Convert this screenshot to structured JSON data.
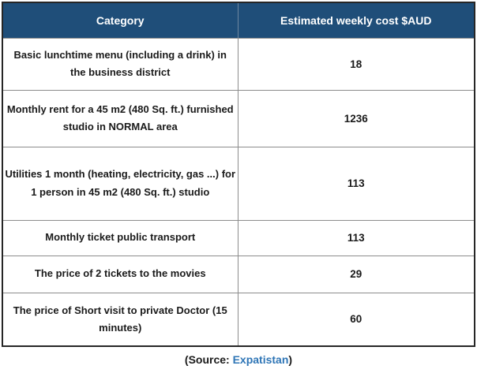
{
  "table": {
    "headers": [
      "Category",
      "Estimated weekly cost $AUD"
    ],
    "rows": [
      {
        "category": "Basic lunchtime menu (including a drink) in the business district",
        "cost": "18"
      },
      {
        "category": "Monthly rent for a 45 m2 (480 Sq. ft.) furnished studio in NORMAL area",
        "cost": "1236"
      },
      {
        "category": "Utilities 1 month (heating, electricity, gas ...) for 1 person in 45 m2 (480 Sq. ft.) studio",
        "cost": "113"
      },
      {
        "category": "Monthly ticket public transport",
        "cost": "113"
      },
      {
        "category": "The price of 2 tickets to the movies",
        "cost": "29"
      },
      {
        "category": "The price of Short visit to private Doctor (15 minutes)",
        "cost": "60"
      }
    ]
  },
  "footer": {
    "prefix": "(Source: ",
    "link": "Expatistan",
    "suffix": ")"
  },
  "colors": {
    "header_bg": "#1F4E79",
    "header_text": "#FFFFFF",
    "body_text": "#1A1A1A",
    "link": "#2E75B6",
    "outer_border": "#262626",
    "inner_border": "#8C8C8C"
  },
  "chart_data": {
    "type": "table",
    "title": "",
    "columns": [
      "Category",
      "Estimated weekly cost $AUD"
    ],
    "categories": [
      "Basic lunchtime menu (including a drink) in the business district",
      "Monthly rent for a 45 m2 (480 Sq. ft.) furnished studio in NORMAL area",
      "Utilities 1 month (heating, electricity, gas ...) for 1 person in 45 m2 (480 Sq. ft.) studio",
      "Monthly ticket public transport",
      "The price of 2 tickets to the movies",
      "The price of Short visit to private Doctor (15 minutes)"
    ],
    "values": [
      18,
      1236,
      113,
      113,
      29,
      60
    ],
    "source": "Expatistan"
  }
}
